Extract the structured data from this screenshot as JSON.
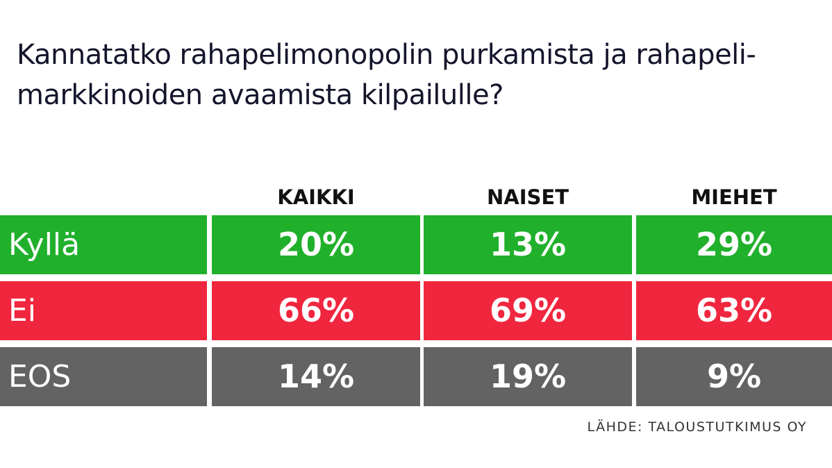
{
  "title_lines": [
    "Kannatatko rahapelimonopolin purkamista ja rahapeli-",
    "markkinoiden avaamista kilpailulle?"
  ],
  "source": "LÄHDE: TALOUSTUTKIMUS OY",
  "colors": {
    "yes": "#21b02c",
    "no": "#f0263f",
    "eos": "#636363"
  },
  "chart_data": {
    "type": "table",
    "title": "Kannatatko rahapelimonopolin purkamista ja rahapeli-markkinoiden avaamista kilpailulle?",
    "columns": [
      "KAIKKI",
      "NAISET",
      "MIEHET"
    ],
    "rows": [
      {
        "label": "Kyllä",
        "color_key": "yes",
        "values": [
          "20%",
          "13%",
          "29%"
        ]
      },
      {
        "label": "Ei",
        "color_key": "no",
        "values": [
          "66%",
          "69%",
          "63%"
        ]
      },
      {
        "label": "EOS",
        "color_key": "eos",
        "values": [
          "14%",
          "19%",
          "9%"
        ]
      }
    ]
  }
}
